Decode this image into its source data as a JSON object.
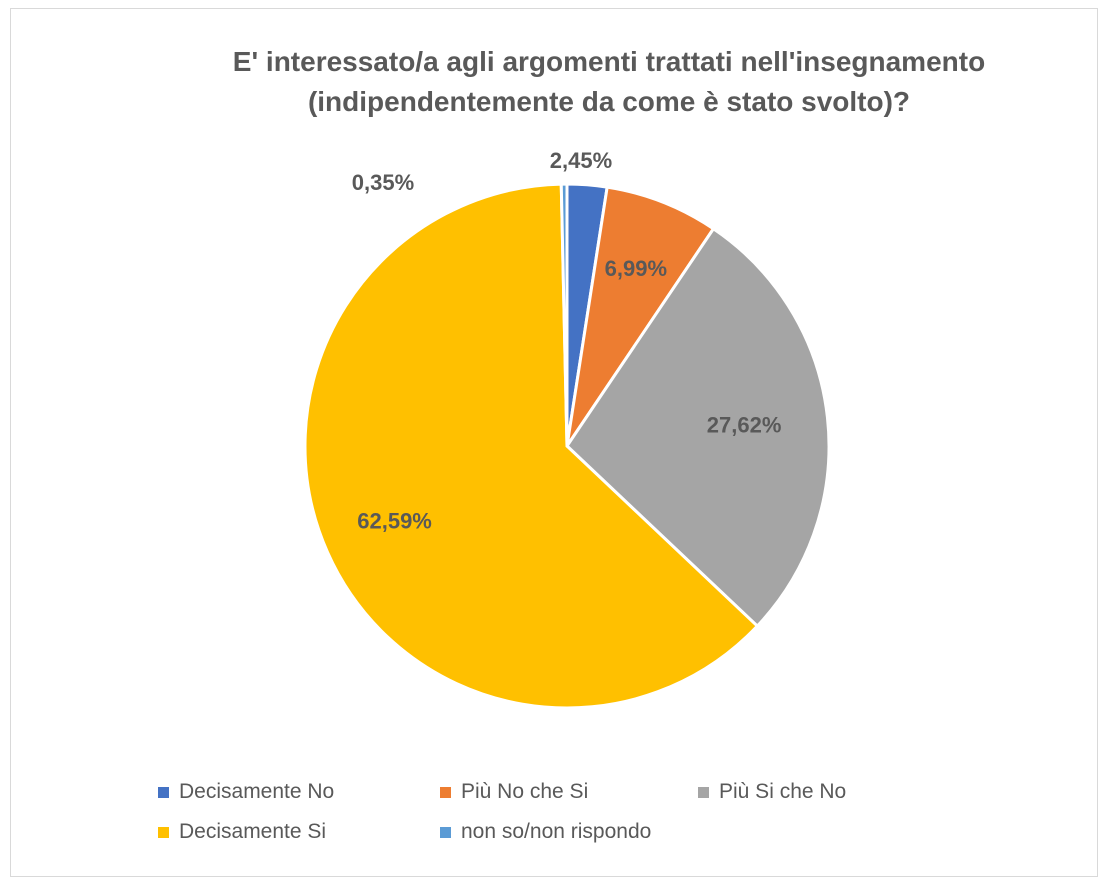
{
  "chart_data": {
    "type": "pie",
    "title_lines": [
      "E' interessato/a agli argomenti trattati nell'insegnamento",
      "(indipendentemente da come è stato svolto)?"
    ],
    "legend_position": "bottom",
    "slices": [
      {
        "label": "Decisamente No",
        "value": 2.45,
        "value_label": "2,45%",
        "color": "#4472C4"
      },
      {
        "label": "Più No che Si",
        "value": 6.99,
        "value_label": "6,99%",
        "color": "#ED7D31"
      },
      {
        "label": "Più Si che No",
        "value": 27.62,
        "value_label": "27,62%",
        "color": "#A5A5A5"
      },
      {
        "label": "Decisamente Si",
        "value": 62.59,
        "value_label": "62,59%",
        "color": "#FFC000"
      },
      {
        "label": "non so/non rispondo",
        "value": 0.35,
        "value_label": "0,35%",
        "color": "#5B9BD5"
      }
    ]
  }
}
